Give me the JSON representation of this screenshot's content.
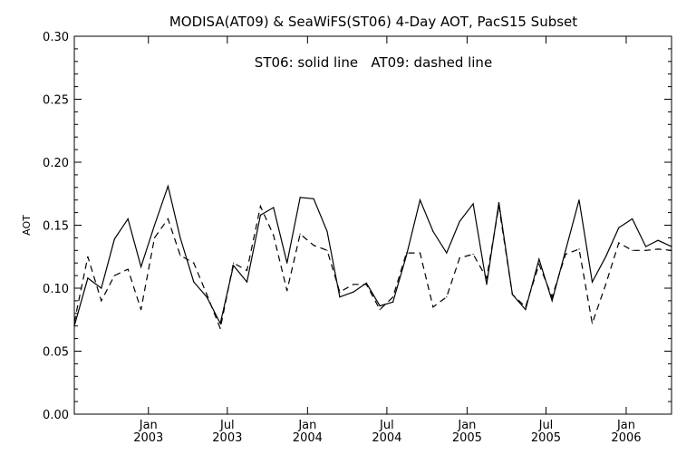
{
  "chart_data": {
    "type": "line",
    "title": "MODISA(AT09) & SeaWiFS(ST06) 4-Day AOT, PacS15 Subset",
    "annotation": "ST06: solid line   AT09: dashed line",
    "xlabel": "",
    "ylabel": "AOT",
    "ylim": [
      0.0,
      0.3
    ],
    "yticks": [
      "0.00",
      "0.05",
      "0.10",
      "0.15",
      "0.20",
      "0.25",
      "0.30"
    ],
    "xticks": [
      {
        "month": "Jan",
        "year": "2003",
        "date": "2003-01-01"
      },
      {
        "month": "Jul",
        "year": "2003",
        "date": "2003-07-01"
      },
      {
        "month": "Jan",
        "year": "2004",
        "date": "2004-01-01"
      },
      {
        "month": "Jul",
        "year": "2004",
        "date": "2004-07-01"
      },
      {
        "month": "Jan",
        "year": "2005",
        "date": "2005-01-01"
      },
      {
        "month": "Jul",
        "year": "2005",
        "date": "2005-07-01"
      },
      {
        "month": "Jan",
        "year": "2006",
        "date": "2006-01-01"
      }
    ],
    "xlim": [
      "2002-07-15",
      "2006-04-15"
    ],
    "x": [
      "2002-07-15",
      "2002-08-15",
      "2002-09-15",
      "2002-10-15",
      "2002-11-15",
      "2002-12-15",
      "2003-01-15",
      "2003-02-15",
      "2003-03-15",
      "2003-04-15",
      "2003-05-15",
      "2003-06-15",
      "2003-07-15",
      "2003-08-15",
      "2003-09-15",
      "2003-10-15",
      "2003-11-15",
      "2003-12-15",
      "2004-01-15",
      "2004-02-15",
      "2004-03-15",
      "2004-04-15",
      "2004-05-15",
      "2004-06-15",
      "2004-07-15",
      "2004-08-15",
      "2004-09-15",
      "2004-10-15",
      "2004-11-15",
      "2004-12-15",
      "2005-01-15",
      "2005-02-15",
      "2005-03-15",
      "2005-04-15",
      "2005-05-15",
      "2005-06-15",
      "2005-07-15",
      "2005-08-15",
      "2005-09-15",
      "2005-10-15",
      "2005-11-15",
      "2005-12-15",
      "2006-01-15",
      "2006-02-15",
      "2006-03-15",
      "2006-04-15"
    ],
    "series": [
      {
        "name": "ST06",
        "style": "solid",
        "color": "#000000",
        "values": [
          0.07,
          0.108,
          0.1,
          0.139,
          0.155,
          0.117,
          0.15,
          0.181,
          0.14,
          0.105,
          0.093,
          0.072,
          0.118,
          0.105,
          0.158,
          0.164,
          0.12,
          0.172,
          0.171,
          0.145,
          0.093,
          0.097,
          0.104,
          0.086,
          0.089,
          0.126,
          0.17,
          0.145,
          0.128,
          0.153,
          0.167,
          0.103,
          0.168,
          0.095,
          0.083,
          0.123,
          0.09,
          0.13,
          0.17,
          0.105,
          0.125,
          0.148,
          0.155,
          0.133,
          0.138,
          0.133
        ]
      },
      {
        "name": "AT09",
        "style": "dashed",
        "color": "#000000",
        "values": [
          0.073,
          0.125,
          0.09,
          0.11,
          0.115,
          0.083,
          0.14,
          0.155,
          0.126,
          0.12,
          0.095,
          0.068,
          0.12,
          0.114,
          0.165,
          0.142,
          0.098,
          0.143,
          0.134,
          0.13,
          0.097,
          0.103,
          0.103,
          0.083,
          0.093,
          0.128,
          0.128,
          0.085,
          0.093,
          0.124,
          0.127,
          0.108,
          0.165,
          0.095,
          0.085,
          0.119,
          0.093,
          0.127,
          0.131,
          0.072,
          0.103,
          0.136,
          0.13,
          0.13,
          0.131,
          0.13
        ]
      }
    ],
    "grid": false,
    "legend": "none"
  }
}
